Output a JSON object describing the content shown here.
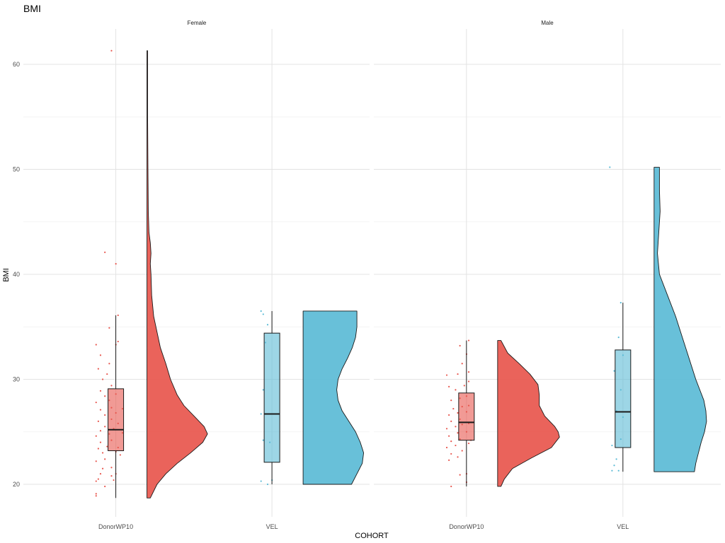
{
  "chart_data": {
    "type": "raincloud",
    "title": "BMI",
    "xlabel": "COHORT",
    "ylabel": "BMI",
    "ylim": [
      16.5,
      63.5
    ],
    "yticks": [
      20,
      30,
      40,
      50,
      60
    ],
    "categories": [
      "DonorWP10",
      "VEL"
    ],
    "colors": {
      "DonorWP10": "#E8574F",
      "VEL": "#5CBBD6"
    },
    "grid": true,
    "facets": [
      {
        "label": "Female",
        "groups": [
          {
            "cohort": "DonorWP10",
            "box": {
              "min": 18.7,
              "q1": 23.2,
              "median": 25.2,
              "q3": 29.1,
              "max": 36.1
            },
            "density": {
              "y": [
                18.7,
                20,
                21,
                22,
                23,
                24,
                24.8,
                25.5,
                26.5,
                27.5,
                28.5,
                30,
                31.5,
                33,
                34.5,
                36,
                38,
                40,
                41,
                42,
                43,
                44,
                46,
                50,
                55,
                58,
                61.3
              ],
              "w": [
                0.05,
                0.15,
                0.28,
                0.45,
                0.65,
                0.83,
                0.9,
                0.85,
                0.7,
                0.55,
                0.45,
                0.35,
                0.28,
                0.2,
                0.15,
                0.1,
                0.07,
                0.06,
                0.05,
                0.06,
                0.05,
                0.03,
                0.02,
                0.015,
                0.01,
                0.01,
                0.01
              ]
            },
            "points": [
              [
                0.1,
                18.9
              ],
              [
                0.1,
                19.1
              ],
              [
                0.3,
                19.8
              ],
              [
                0.1,
                20.3
              ],
              [
                0.15,
                20.5
              ],
              [
                0.5,
                20.4
              ],
              [
                0.45,
                20.8
              ],
              [
                0.2,
                21.0
              ],
              [
                0.55,
                21.0
              ],
              [
                0.25,
                21.5
              ],
              [
                0.45,
                21.6
              ],
              [
                0.1,
                22.2
              ],
              [
                0.3,
                22.4
              ],
              [
                0.65,
                22.8
              ],
              [
                0.25,
                23.0
              ],
              [
                0.55,
                23.1
              ],
              [
                0.15,
                23.4
              ],
              [
                0.35,
                23.6
              ],
              [
                0.6,
                23.5
              ],
              [
                0.2,
                24.0
              ],
              [
                0.45,
                24.2
              ],
              [
                0.1,
                24.6
              ],
              [
                0.4,
                24.8
              ],
              [
                0.7,
                24.9
              ],
              [
                0.2,
                25.1
              ],
              [
                0.5,
                25.3
              ],
              [
                0.3,
                25.5
              ],
              [
                0.6,
                25.8
              ],
              [
                0.15,
                26.0
              ],
              [
                0.45,
                26.2
              ],
              [
                0.3,
                26.6
              ],
              [
                0.55,
                26.8
              ],
              [
                0.2,
                27.1
              ],
              [
                0.45,
                27.3
              ],
              [
                0.7,
                27.2
              ],
              [
                0.1,
                27.8
              ],
              [
                0.4,
                28.0
              ],
              [
                0.3,
                28.4
              ],
              [
                0.55,
                28.6
              ],
              [
                0.2,
                28.9
              ],
              [
                0.45,
                29.4
              ],
              [
                0.25,
                30.0
              ],
              [
                0.35,
                30.5
              ],
              [
                0.15,
                31.0
              ],
              [
                0.4,
                31.5
              ],
              [
                0.2,
                32.3
              ],
              [
                0.1,
                33.3
              ],
              [
                0.55,
                33.3
              ],
              [
                0.6,
                33.6
              ],
              [
                0.4,
                34.9
              ],
              [
                0.6,
                36.1
              ],
              [
                0.3,
                42.1
              ],
              [
                0.55,
                41.0
              ],
              [
                0.45,
                61.3
              ]
            ]
          },
          {
            "cohort": "VEL",
            "box": {
              "min": 20.0,
              "q1": 22.1,
              "median": 26.7,
              "q3": 34.4,
              "max": 36.5
            },
            "density": {
              "y": [
                20,
                21,
                22,
                23,
                24,
                25,
                26,
                27,
                28,
                29,
                30,
                31,
                32,
                33,
                34,
                35,
                36,
                36.5
              ],
              "w": [
                0.72,
                0.8,
                0.88,
                0.9,
                0.85,
                0.78,
                0.68,
                0.58,
                0.52,
                0.5,
                0.52,
                0.58,
                0.66,
                0.73,
                0.78,
                0.8,
                0.8,
                0.8
              ]
            },
            "points": [
              [
                0.3,
                20.3
              ],
              [
                0.45,
                20.0
              ],
              [
                0.55,
                20.4
              ],
              [
                0.35,
                24.2
              ],
              [
                0.5,
                24.0
              ],
              [
                0.3,
                26.7
              ],
              [
                0.35,
                29.0
              ],
              [
                0.4,
                33.5
              ],
              [
                0.45,
                35.2
              ],
              [
                0.35,
                36.2
              ],
              [
                0.3,
                36.5
              ]
            ]
          }
        ]
      },
      {
        "label": "Male",
        "groups": [
          {
            "cohort": "DonorWP10",
            "box": {
              "min": 19.8,
              "q1": 24.2,
              "median": 25.9,
              "q3": 28.7,
              "max": 33.7
            },
            "density": {
              "y": [
                19.8,
                20.5,
                21.5,
                22.5,
                23.5,
                24.5,
                25,
                25.5,
                26.5,
                27.5,
                28.5,
                29.5,
                30.5,
                31.5,
                32.5,
                33.7
              ],
              "w": [
                0.05,
                0.1,
                0.22,
                0.5,
                0.8,
                0.92,
                0.9,
                0.85,
                0.7,
                0.62,
                0.62,
                0.6,
                0.48,
                0.32,
                0.15,
                0.05
              ]
            },
            "points": [
              [
                0.2,
                19.8
              ],
              [
                0.55,
                20.2
              ],
              [
                0.4,
                20.9
              ],
              [
                0.55,
                21.0
              ],
              [
                0.15,
                22.3
              ],
              [
                0.35,
                22.6
              ],
              [
                0.2,
                22.9
              ],
              [
                0.45,
                23.2
              ],
              [
                0.1,
                23.5
              ],
              [
                0.3,
                23.7
              ],
              [
                0.6,
                23.9
              ],
              [
                0.2,
                24.1
              ],
              [
                0.4,
                24.3
              ],
              [
                0.65,
                24.2
              ],
              [
                0.15,
                24.6
              ],
              [
                0.35,
                24.9
              ],
              [
                0.55,
                25.0
              ],
              [
                0.1,
                25.3
              ],
              [
                0.3,
                25.5
              ],
              [
                0.45,
                25.7
              ],
              [
                0.6,
                25.8
              ],
              [
                0.2,
                26.0
              ],
              [
                0.4,
                26.2
              ],
              [
                0.15,
                26.6
              ],
              [
                0.35,
                26.8
              ],
              [
                0.55,
                26.9
              ],
              [
                0.25,
                27.2
              ],
              [
                0.45,
                27.4
              ],
              [
                0.6,
                27.5
              ],
              [
                0.2,
                28.0
              ],
              [
                0.4,
                28.2
              ],
              [
                0.55,
                28.4
              ],
              [
                0.3,
                29.0
              ],
              [
                0.15,
                29.3
              ],
              [
                0.5,
                29.4
              ],
              [
                0.6,
                29.8
              ],
              [
                0.1,
                30.4
              ],
              [
                0.35,
                30.5
              ],
              [
                0.6,
                30.7
              ],
              [
                0.45,
                31.5
              ],
              [
                0.55,
                32.4
              ],
              [
                0.4,
                33.2
              ],
              [
                0.6,
                33.7
              ]
            ]
          },
          {
            "cohort": "VEL",
            "box": {
              "min": 21.2,
              "q1": 23.5,
              "median": 26.9,
              "q3": 32.8,
              "max": 37.3
            },
            "density": {
              "y": [
                21.2,
                22,
                23,
                24,
                25,
                26,
                27,
                28,
                29,
                30,
                32,
                34,
                36,
                38,
                40,
                42,
                44,
                46,
                48,
                50.2
              ],
              "w": [
                0.6,
                0.62,
                0.66,
                0.7,
                0.75,
                0.78,
                0.77,
                0.74,
                0.68,
                0.62,
                0.52,
                0.42,
                0.32,
                0.2,
                0.08,
                0.05,
                0.07,
                0.09,
                0.08,
                0.08
              ]
            },
            "points": [
              [
                0.3,
                21.3
              ],
              [
                0.45,
                21.3
              ],
              [
                0.35,
                21.8
              ],
              [
                0.4,
                22.4
              ],
              [
                0.3,
                23.7
              ],
              [
                0.5,
                24.3
              ],
              [
                0.55,
                26.4
              ],
              [
                0.4,
                27.0
              ],
              [
                0.5,
                29.0
              ],
              [
                0.35,
                30.8
              ],
              [
                0.55,
                32.3
              ],
              [
                0.45,
                34.0
              ],
              [
                0.5,
                37.3
              ],
              [
                0.25,
                50.2
              ]
            ]
          }
        ]
      }
    ]
  }
}
